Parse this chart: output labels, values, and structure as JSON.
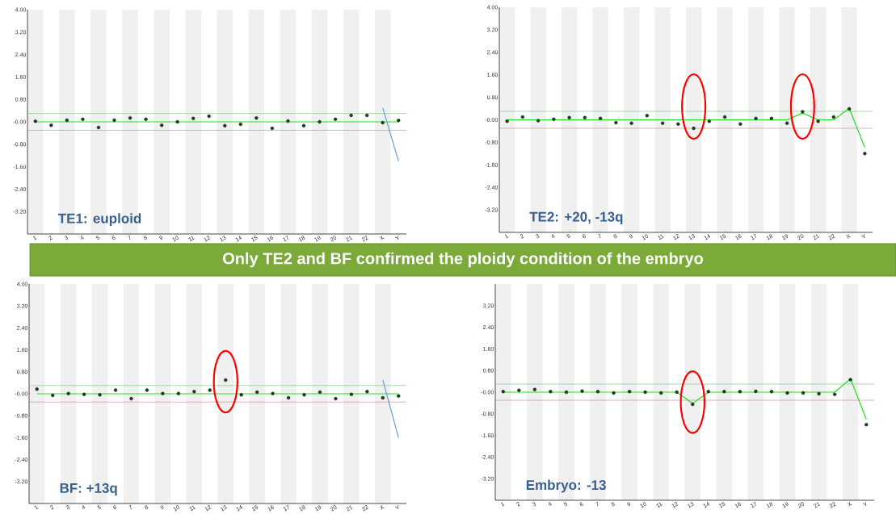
{
  "chart_data": [
    {
      "type": "scatter",
      "title": "TE1: euploid",
      "ylim": [
        -4,
        4
      ],
      "categories": [
        "1",
        "2",
        "3",
        "4",
        "5",
        "6",
        "7",
        "8",
        "9",
        "10",
        "11",
        "12",
        "13",
        "14",
        "15",
        "16",
        "17",
        "18",
        "19",
        "20",
        "21",
        "22",
        "X",
        "Y"
      ],
      "yticks": [
        {
          "value": 4,
          "label": "4.00"
        },
        {
          "value": 3.2,
          "label": "3.20"
        },
        {
          "value": 2.4,
          "label": "2.40"
        },
        {
          "value": 1.6,
          "label": "1.60"
        },
        {
          "value": 0.8,
          "label": "0.80"
        },
        {
          "value": 0,
          "label": "-0.00"
        },
        {
          "value": -0.8,
          "label": "-0.80"
        },
        {
          "value": -1.6,
          "label": "-1.60"
        },
        {
          "value": -2.4,
          "label": "-2.40"
        },
        {
          "value": -3.2,
          "label": "-3.20"
        }
      ],
      "ref_lines": [
        {
          "axis": "y",
          "value": 0.3,
          "color": "#77c277"
        },
        {
          "axis": "y",
          "value": -0.3,
          "color": "#cc8080"
        }
      ],
      "series": [
        {
          "type": "line",
          "color": "#22e022",
          "values": [
            0,
            0,
            0,
            0,
            0,
            0,
            0,
            0,
            0,
            0,
            0,
            0,
            0,
            0,
            0,
            0,
            0,
            0,
            0,
            0,
            0,
            0,
            0,
            0
          ]
        },
        {
          "color": "#1c3a1c",
          "values": [
            0.02,
            -0.12,
            0.06,
            0.09,
            -0.2,
            0.06,
            0.14,
            0.09,
            -0.12,
            0,
            0.12,
            0.2,
            -0.14,
            -0.09,
            0.14,
            -0.23,
            0.03,
            -0.14,
            0,
            0.09,
            0.23,
            0.23,
            -0.03,
            0.05
          ]
        },
        {
          "type": "line",
          "color": "#6a9fd8",
          "values": [
            null,
            null,
            null,
            null,
            null,
            null,
            null,
            null,
            null,
            null,
            null,
            null,
            null,
            null,
            null,
            null,
            null,
            null,
            null,
            null,
            null,
            null,
            0.5,
            -1.4
          ]
        }
      ]
    },
    {
      "type": "scatter",
      "title": "TE2: +20, -13q",
      "ylim": [
        -4,
        4
      ],
      "categories": [
        "1",
        "2",
        "3",
        "4",
        "5",
        "6",
        "7",
        "8",
        "9",
        "10",
        "11",
        "12",
        "13",
        "14",
        "15",
        "16",
        "17",
        "18",
        "19",
        "20",
        "21",
        "22",
        "X",
        "Y"
      ],
      "yticks": [
        {
          "value": 4,
          "label": "4.00"
        },
        {
          "value": 3.2,
          "label": "3.20"
        },
        {
          "value": 2.4,
          "label": "2.40"
        },
        {
          "value": 1.6,
          "label": "1.60"
        },
        {
          "value": 0.8,
          "label": "0.80"
        },
        {
          "value": 0,
          "label": "-0.00"
        },
        {
          "value": -0.8,
          "label": "-0.80"
        },
        {
          "value": -1.6,
          "label": "-1.60"
        },
        {
          "value": -2.4,
          "label": "-2.40"
        },
        {
          "value": -3.2,
          "label": "-3.20"
        }
      ],
      "ref_lines": [
        {
          "axis": "y",
          "value": 0.3,
          "color": "#77c277"
        },
        {
          "axis": "y",
          "value": -0.3,
          "color": "#cc8080"
        }
      ],
      "series": [
        {
          "type": "line",
          "color": "#22e022",
          "values": [
            0,
            0,
            0,
            0,
            0,
            0,
            0,
            0,
            0,
            0,
            0,
            0,
            0,
            0,
            0,
            0,
            0,
            0,
            0,
            0.24,
            0,
            0,
            0.41,
            -0.98
          ]
        },
        {
          "color": "#1c3a1c",
          "values": [
            -0.05,
            0.1,
            -0.03,
            0.02,
            0.08,
            0.08,
            0.05,
            -0.1,
            -0.12,
            0.15,
            -0.12,
            -0.15,
            -0.3,
            -0.05,
            0.1,
            -0.15,
            0.05,
            0.05,
            -0.12,
            0.29,
            -0.05,
            0.1,
            0.39,
            -1.2
          ]
        }
      ]
    },
    {
      "type": "scatter",
      "title": "BF: +13q",
      "annotations": [
        "Only TE2 and BF confirmed the ploidy condition of the embryo"
      ],
      "ylim": [
        -4,
        4
      ],
      "categories": [
        "1",
        "2",
        "3",
        "4",
        "5",
        "6",
        "7",
        "8",
        "9",
        "10",
        "11",
        "12",
        "13",
        "14",
        "15",
        "16",
        "17",
        "18",
        "19",
        "20",
        "21",
        "22",
        "X",
        "Y"
      ],
      "yticks": [
        {
          "value": 4,
          "label": "4.00"
        },
        {
          "value": 3.2,
          "label": "3.20"
        },
        {
          "value": 2.4,
          "label": "2.40"
        },
        {
          "value": 1.6,
          "label": "1.60"
        },
        {
          "value": 0.8,
          "label": "0.80"
        },
        {
          "value": 0,
          "label": "-0.00"
        },
        {
          "value": -0.8,
          "label": "-0.80"
        },
        {
          "value": -1.6,
          "label": "-1.60"
        },
        {
          "value": -2.4,
          "label": "-2.40"
        },
        {
          "value": -3.2,
          "label": "-3.20"
        }
      ],
      "ref_lines": [
        {
          "axis": "y",
          "value": 0.3,
          "color": "#77c277"
        },
        {
          "axis": "y",
          "value": -0.3,
          "color": "#cc8080"
        }
      ],
      "series": [
        {
          "type": "line",
          "color": "#22e022",
          "values": [
            0,
            0,
            0,
            0,
            0,
            0,
            0,
            0,
            0,
            0,
            0,
            0,
            0,
            0,
            0,
            0,
            0,
            0,
            0,
            0,
            0,
            0,
            0,
            0
          ]
        },
        {
          "color": "#1c3a1c",
          "values": [
            0.17,
            -0.06,
            0.01,
            -0.02,
            -0.04,
            0.13,
            -0.18,
            0.13,
            0.01,
            0.01,
            0.08,
            0.13,
            0.5,
            -0.04,
            0.06,
            0.01,
            -0.15,
            -0.04,
            0.06,
            -0.18,
            -0.02,
            0.08,
            -0.15,
            -0.08
          ]
        },
        {
          "type": "line",
          "color": "#6a9fd8",
          "values": [
            null,
            null,
            null,
            null,
            null,
            null,
            null,
            null,
            null,
            null,
            null,
            null,
            null,
            null,
            null,
            null,
            null,
            null,
            null,
            null,
            null,
            null,
            0.5,
            -1.6
          ]
        }
      ]
    },
    {
      "type": "scatter",
      "title": "Embryo: -13",
      "ylim": [
        -4,
        4
      ],
      "categories": [
        "1",
        "2",
        "3",
        "4",
        "5",
        "6",
        "7",
        "8",
        "9",
        "10",
        "11",
        "12",
        "13",
        "14",
        "15",
        "16",
        "17",
        "18",
        "19",
        "20",
        "21",
        "22",
        "X",
        "Y"
      ],
      "yticks": [
        {
          "value": 3.2,
          "label": "3.20"
        },
        {
          "value": 2.4,
          "label": "2.40"
        },
        {
          "value": 1.6,
          "label": "1.60"
        },
        {
          "value": 0.8,
          "label": "0.80"
        },
        {
          "value": 0,
          "label": "-0.00"
        },
        {
          "value": -0.8,
          "label": "-0.80"
        },
        {
          "value": -1.6,
          "label": "-1.60"
        },
        {
          "value": -2.4,
          "label": "-2.40"
        },
        {
          "value": -3.2,
          "label": "-3.20"
        }
      ],
      "ref_lines": [
        {
          "axis": "y",
          "value": 0.3,
          "color": "#77c277"
        },
        {
          "axis": "y",
          "value": -0.3,
          "color": "#cc8080"
        }
      ],
      "series": [
        {
          "type": "line",
          "color": "#22e022",
          "values": [
            0,
            0,
            0,
            0,
            0,
            0,
            0,
            0,
            0,
            0,
            0,
            0,
            -0.42,
            0,
            0,
            0,
            0,
            0,
            0,
            0,
            0,
            0,
            0.49,
            -1.0
          ]
        },
        {
          "color": "#1c3a1c",
          "values": [
            0.02,
            0.07,
            0.1,
            0.02,
            0,
            0.04,
            0.02,
            -0.03,
            0.02,
            0,
            -0.03,
            0,
            -0.45,
            0.02,
            0.02,
            0.02,
            0.03,
            0.02,
            -0.03,
            -0.03,
            -0.06,
            -0.08,
            0.46,
            -1.2
          ]
        }
      ]
    }
  ]
}
